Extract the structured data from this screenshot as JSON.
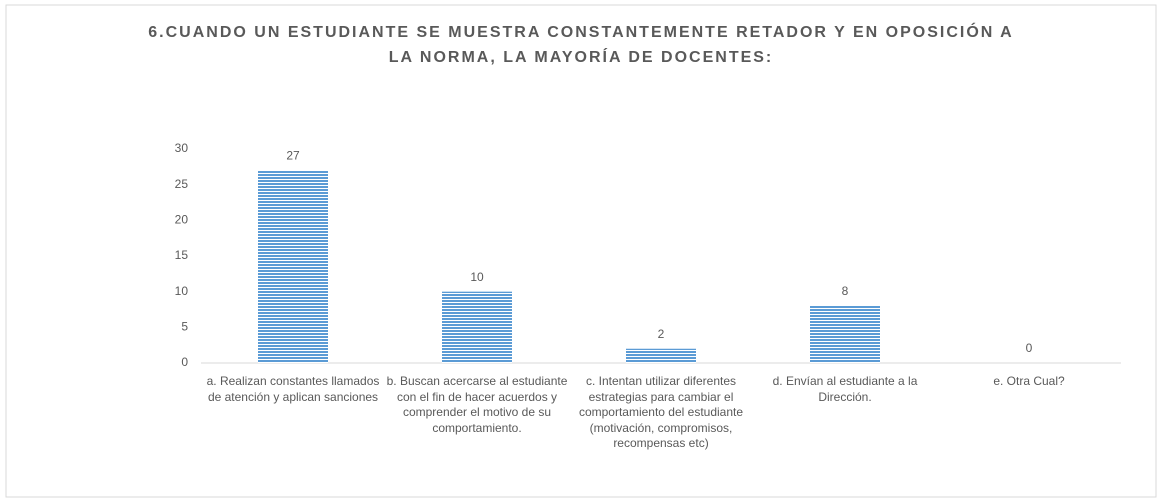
{
  "chart_data": {
    "type": "bar",
    "title": "6.CUANDO UN ESTUDIANTE SE MUESTRA CONSTANTEMENTE RETADOR Y EN OPOSICIÓN A LA NORMA, LA MAYORÍA DE DOCENTES:",
    "categories": [
      "a. Realizan constantes llamados de atención y aplican sanciones",
      "b. Buscan acercarse al estudiante con el fin de hacer acuerdos y comprender el motivo de su comportamiento.",
      "c. Intentan utilizar diferentes estrategias para cambiar el comportamiento del estudiante (motivación, compromisos, recompensas etc)",
      "d. Envían al estudiante a la Dirección.",
      "e. Otra Cual?"
    ],
    "values": [
      27,
      10,
      2,
      8,
      0
    ],
    "color": "#5b9bd5",
    "ylim": [
      0,
      30
    ],
    "yticks": [
      0,
      5,
      10,
      15,
      20,
      25,
      30
    ],
    "grid": false
  }
}
